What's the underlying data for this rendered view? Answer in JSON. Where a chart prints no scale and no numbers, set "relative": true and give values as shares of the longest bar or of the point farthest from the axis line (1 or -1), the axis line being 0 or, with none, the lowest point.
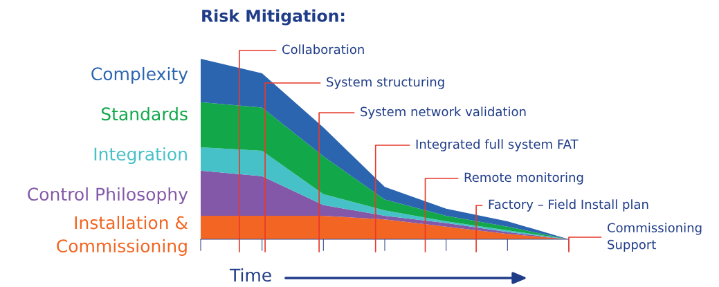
{
  "chart_data": {
    "type": "area",
    "stacked": true,
    "relative": true,
    "title": "Risk Mitigation:",
    "xlabel": "Time",
    "categories": [
      null,
      null,
      null,
      null,
      null,
      null,
      null
    ],
    "series": [
      {
        "name": "Installation & Commissioning",
        "color": "#f26522",
        "values": [
          0.13,
          0.13,
          0.13,
          0.11,
          0.07,
          0.03,
          0
        ]
      },
      {
        "name": "Control Philosophy",
        "color": "#8358a8",
        "values": [
          0.25,
          0.22,
          0.06,
          0.02,
          0.02,
          0.01,
          0
        ]
      },
      {
        "name": "Integration",
        "color": "#46c1c8",
        "values": [
          0.13,
          0.14,
          0.06,
          0.03,
          0.01,
          0.01,
          0
        ]
      },
      {
        "name": "Standards",
        "color": "#12a84a",
        "values": [
          0.25,
          0.24,
          0.21,
          0.06,
          0.03,
          0.02,
          0
        ]
      },
      {
        "name": "Complexity",
        "color": "#2b65b0",
        "values": [
          0.24,
          0.19,
          0.16,
          0.07,
          0.04,
          0.03,
          0
        ]
      }
    ],
    "annotations": [
      "Collaboration",
      "System structuring",
      "System network validation",
      "Integrated full system FAT",
      "Remote monitoring",
      "Factory – Field Install plan",
      "Commissioning\nSupport"
    ],
    "grid": false,
    "legend": false
  }
}
